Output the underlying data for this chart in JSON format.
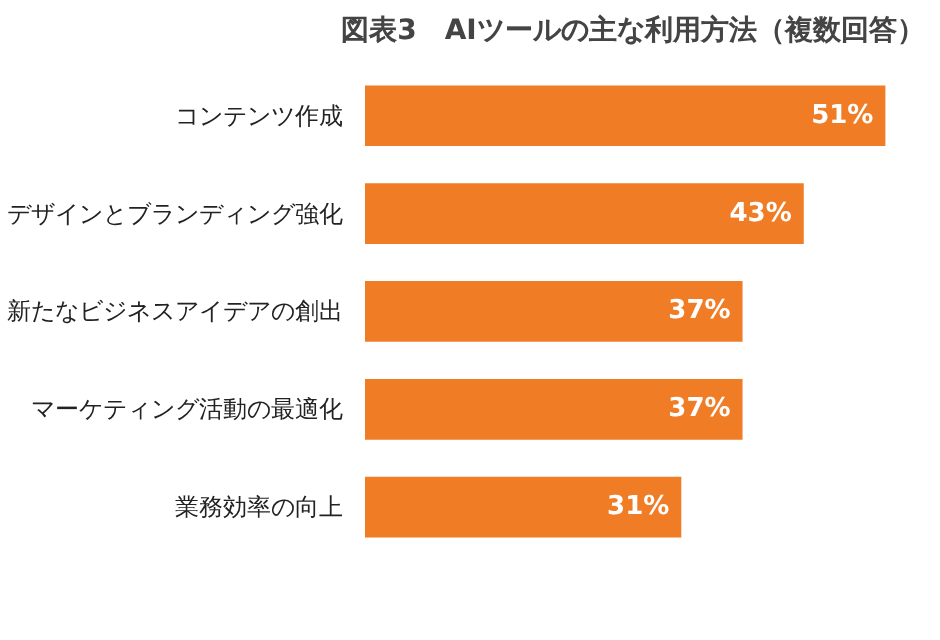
{
  "chart_data": {
    "type": "bar",
    "orientation": "horizontal",
    "title": "図表3　AIツールの主な利用方法（複数回答）",
    "categories": [
      "コンテンツ作成",
      "デザインとブランディング強化",
      "新たなビジネスアイデアの創出",
      "マーケティング活動の最適化",
      "業務効率の向上"
    ],
    "values": [
      51,
      43,
      37,
      37,
      31
    ],
    "value_labels": [
      "51%",
      "43%",
      "37%",
      "37%",
      "31%"
    ],
    "color": "#f07d26",
    "tick_labels": "y",
    "grid": false
  }
}
